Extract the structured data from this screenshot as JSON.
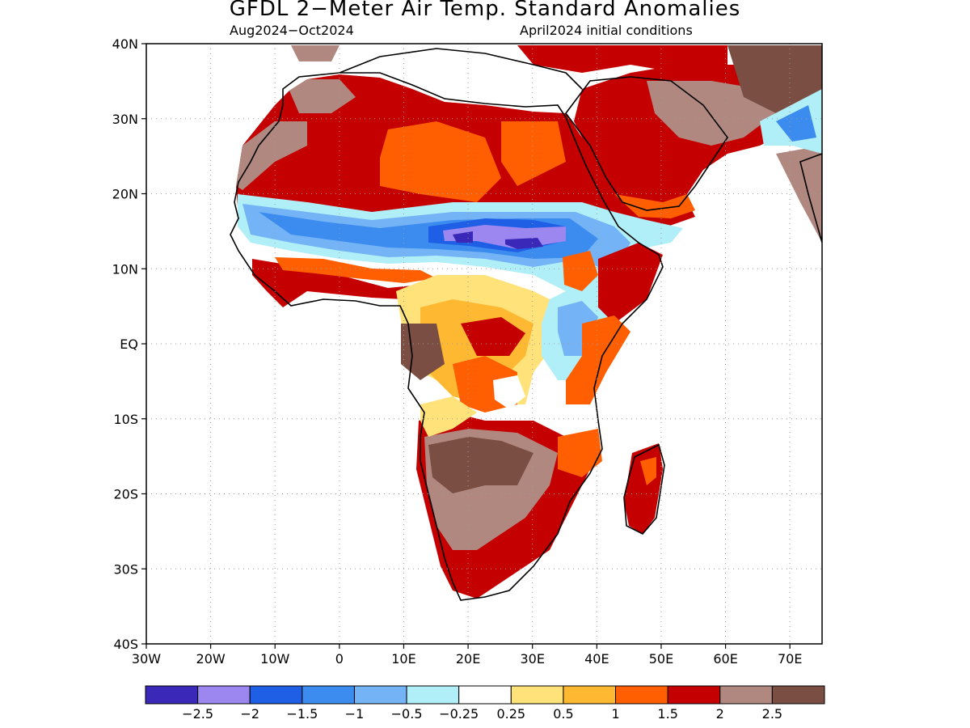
{
  "header": {
    "title": "GFDL 2−Meter Air Temp. Standard Anomalies",
    "period": "Aug2024−Oct2024",
    "init": "April2024 initial conditions"
  },
  "axes": {
    "lat_labels": [
      "40N",
      "30N",
      "20N",
      "10N",
      "EQ",
      "10S",
      "20S",
      "30S",
      "40S"
    ],
    "lon_labels": [
      "30W",
      "20W",
      "10W",
      "0",
      "10E",
      "20E",
      "30E",
      "40E",
      "50E",
      "60E",
      "70E"
    ]
  },
  "legend": {
    "colors": [
      "#3a28b8",
      "#9c86f0",
      "#1f5fe6",
      "#3c8cf0",
      "#74b4f6",
      "#b0eef8",
      "#ffffff",
      "#ffe27a",
      "#ffb832",
      "#ff5f00",
      "#c40000",
      "#b08880",
      "#7a4e42"
    ],
    "labels": [
      "−2.5",
      "−2",
      "−1.5",
      "−1",
      "−0.5",
      "−0.25",
      "0.25",
      "0.5",
      "1",
      "1.5",
      "2",
      "2.5"
    ]
  },
  "map_data": {
    "region": "Africa",
    "lon_range": [
      -30,
      75
    ],
    "lat_range": [
      -40,
      40
    ],
    "units": "standard anomaly",
    "dominant_patterns": [
      {
        "area": "Sahara",
        "category": "1.5 to 2+"
      },
      {
        "area": "Sahel band 10N-18N",
        "category": "-0.5 to -2.5"
      },
      {
        "area": "Gulf of Guinea coast",
        "category": "1.5 to 2"
      },
      {
        "area": "Southern Africa",
        "category": "2 to 2.5+"
      },
      {
        "area": "Arabian Peninsula",
        "category": "2"
      },
      {
        "area": "East African highlands",
        "category": "-0.5 to -1.5"
      }
    ]
  }
}
